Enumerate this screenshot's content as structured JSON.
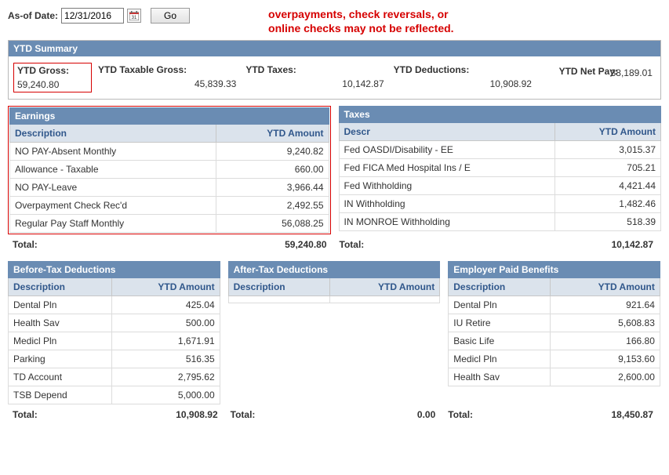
{
  "topbar": {
    "asof_label": "As-of Date:",
    "asof_value": "12/31/2016",
    "go_label": "Go",
    "warning_line1": "overpayments, check reversals, or",
    "warning_line2": "online checks may not be reflected."
  },
  "summary": {
    "title": "YTD Summary",
    "gross_label": "YTD Gross:",
    "gross_value": "59,240.80",
    "taxable_label": "YTD Taxable Gross:",
    "taxable_value": "45,839.33",
    "taxes_label": "YTD Taxes:",
    "taxes_value": "10,142.87",
    "deductions_label": "YTD Deductions:",
    "deductions_value": "10,908.92",
    "netpay_label": "YTD Net Pay:",
    "netpay_value": "38,189.01"
  },
  "earnings": {
    "title": "Earnings",
    "col_desc": "Description",
    "col_amt": "YTD Amount",
    "rows": [
      {
        "d": "NO PAY-Absent Monthly",
        "a": "9,240.82"
      },
      {
        "d": "Allowance - Taxable",
        "a": "660.00"
      },
      {
        "d": "NO PAY-Leave",
        "a": "3,966.44"
      },
      {
        "d": "Overpayment Check Rec'd",
        "a": "2,492.55"
      },
      {
        "d": "Regular Pay Staff Monthly",
        "a": "56,088.25"
      }
    ],
    "total_label": "Total:",
    "total_value": "59,240.80"
  },
  "taxes": {
    "title": "Taxes",
    "col_desc": "Descr",
    "col_amt": "YTD Amount",
    "rows": [
      {
        "d": "Fed  OASDI/Disability - EE",
        "a": "3,015.37"
      },
      {
        "d": "Fed  FICA Med Hospital Ins / E",
        "a": "705.21"
      },
      {
        "d": "Fed  Withholding",
        "a": "4,421.44"
      },
      {
        "d": "IN Withholding",
        "a": "1,482.46"
      },
      {
        "d": "IN MONROE Withholding",
        "a": "518.39"
      }
    ],
    "total_label": "Total:",
    "total_value": "10,142.87"
  },
  "before_tax": {
    "title": "Before-Tax Deductions",
    "col_desc": "Description",
    "col_amt": "YTD Amount",
    "rows": [
      {
        "d": "Dental Pln",
        "a": "425.04"
      },
      {
        "d": "Health Sav",
        "a": "500.00"
      },
      {
        "d": "Medicl Pln",
        "a": "1,671.91"
      },
      {
        "d": "Parking",
        "a": "516.35"
      },
      {
        "d": "TD Account",
        "a": "2,795.62"
      },
      {
        "d": "TSB Depend",
        "a": "5,000.00"
      }
    ],
    "total_label": "Total:",
    "total_value": "10,908.92"
  },
  "after_tax": {
    "title": "After-Tax Deductions",
    "col_desc": "Description",
    "col_amt": "YTD Amount",
    "rows": [
      {
        "d": "",
        "a": ""
      }
    ],
    "total_label": "Total:",
    "total_value": "0.00"
  },
  "employer": {
    "title": "Employer Paid Benefits",
    "col_desc": "Description",
    "col_amt": "YTD Amount",
    "rows": [
      {
        "d": "Dental Pln",
        "a": "921.64"
      },
      {
        "d": "IU Retire",
        "a": "5,608.83"
      },
      {
        "d": "Basic Life",
        "a": "166.80"
      },
      {
        "d": "Medicl Pln",
        "a": "9,153.60"
      },
      {
        "d": "Health Sav",
        "a": "2,600.00"
      }
    ],
    "total_label": "Total:",
    "total_value": "18,450.87"
  }
}
